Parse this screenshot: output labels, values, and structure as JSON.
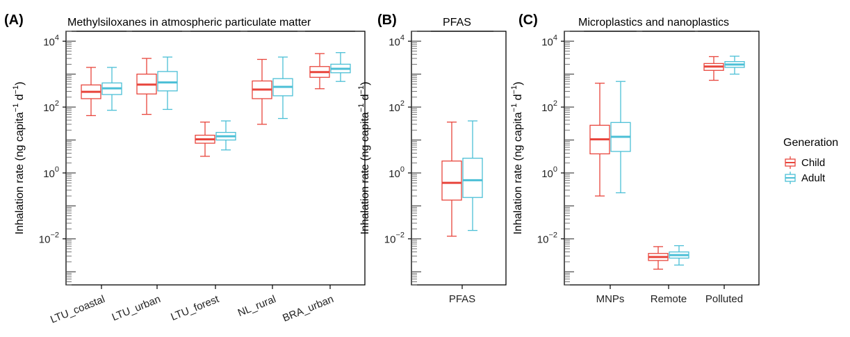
{
  "colors": {
    "Child": "#e8453c",
    "Adult": "#4bbfd6"
  },
  "legend": {
    "title": "Generation",
    "entries": [
      "Child",
      "Adult"
    ],
    "placement": "right"
  },
  "chart_data": [
    {
      "type": "box",
      "panel": "(A)",
      "title": "Methylsiloxanes in atmospheric particulate matter",
      "ylabel": "Inhalation rate (ng capita",
      "ylabel_sup": "−1",
      "ylabel_mid": " d",
      "ylabel_sup2": "−1",
      "ylabel_end": ")",
      "yscale": "log10",
      "ylim": [
        0.0004,
        20000
      ],
      "yticks": [
        {
          "v": 0.01,
          "e": "−2"
        },
        {
          "v": 1,
          "e": "0"
        },
        {
          "v": 100,
          "e": "2"
        },
        {
          "v": 10000,
          "e": "4"
        }
      ],
      "categories": [
        "LTU_coastal",
        "LTU_urban",
        "LTU_forest",
        "NL_rural",
        "BRA_urban"
      ],
      "series": [
        {
          "name": "Child",
          "boxes": [
            {
              "min": 55,
              "q1": 180,
              "median": 290,
              "q3": 470,
              "max": 1600
            },
            {
              "min": 60,
              "q1": 250,
              "median": 480,
              "q3": 1000,
              "max": 3000
            },
            {
              "min": 3.2,
              "q1": 8,
              "median": 10.5,
              "q3": 14,
              "max": 35
            },
            {
              "min": 30,
              "q1": 180,
              "median": 340,
              "q3": 620,
              "max": 2800
            },
            {
              "min": 360,
              "q1": 800,
              "median": 1150,
              "q3": 1700,
              "max": 4200
            }
          ]
        },
        {
          "name": "Adult",
          "boxes": [
            {
              "min": 80,
              "q1": 240,
              "median": 370,
              "q3": 540,
              "max": 1600
            },
            {
              "min": 85,
              "q1": 310,
              "median": 560,
              "q3": 1200,
              "max": 3300
            },
            {
              "min": 5,
              "q1": 10,
              "median": 13,
              "q3": 17,
              "max": 38
            },
            {
              "min": 45,
              "q1": 220,
              "median": 410,
              "q3": 730,
              "max": 3300
            },
            {
              "min": 600,
              "q1": 1100,
              "median": 1450,
              "q3": 2000,
              "max": 4500
            }
          ]
        }
      ]
    },
    {
      "type": "box",
      "panel": "(B)",
      "title": "PFAS",
      "ylabel": "Inhalation rate (ng capita",
      "ylabel_sup": "−1",
      "ylabel_mid": " d",
      "ylabel_sup2": "−1",
      "ylabel_end": ")",
      "yscale": "log10",
      "ylim": [
        0.0004,
        20000
      ],
      "yticks": [
        {
          "v": 0.01,
          "e": "−2"
        },
        {
          "v": 1,
          "e": "0"
        },
        {
          "v": 100,
          "e": "2"
        },
        {
          "v": 10000,
          "e": "4"
        }
      ],
      "categories": [
        "PFAS"
      ],
      "series": [
        {
          "name": "Child",
          "boxes": [
            {
              "min": 0.012,
              "q1": 0.15,
              "median": 0.5,
              "q3": 2.3,
              "max": 35
            }
          ]
        },
        {
          "name": "Adult",
          "boxes": [
            {
              "min": 0.018,
              "q1": 0.18,
              "median": 0.6,
              "q3": 2.8,
              "max": 38
            }
          ]
        }
      ]
    },
    {
      "type": "box",
      "panel": "(C)",
      "title": "Microplastics and nanoplastics",
      "ylabel": "Inhalation rate (ng capita",
      "ylabel_sup": "−1",
      "ylabel_mid": " d",
      "ylabel_sup2": "−1",
      "ylabel_end": ")",
      "yscale": "log10",
      "ylim": [
        0.0004,
        20000
      ],
      "yticks": [
        {
          "v": 0.01,
          "e": "−2"
        },
        {
          "v": 1,
          "e": "0"
        },
        {
          "v": 100,
          "e": "2"
        },
        {
          "v": 10000,
          "e": "4"
        }
      ],
      "categories": [
        "MNPs",
        "Remote",
        "Polluted"
      ],
      "series": [
        {
          "name": "Child",
          "boxes": [
            {
              "min": 0.2,
              "q1": 3.8,
              "median": 10.5,
              "q3": 28,
              "max": 530
            },
            {
              "min": 0.0012,
              "q1": 0.0022,
              "median": 0.0028,
              "q3": 0.0036,
              "max": 0.0058
            },
            {
              "min": 650,
              "q1": 1300,
              "median": 1700,
              "q3": 2100,
              "max": 3400
            }
          ]
        },
        {
          "name": "Adult",
          "boxes": [
            {
              "min": 0.25,
              "q1": 4.5,
              "median": 12.5,
              "q3": 34,
              "max": 600
            },
            {
              "min": 0.0016,
              "q1": 0.0026,
              "median": 0.0032,
              "q3": 0.004,
              "max": 0.0062
            },
            {
              "min": 1000,
              "q1": 1600,
              "median": 1950,
              "q3": 2400,
              "max": 3500
            }
          ]
        }
      ]
    }
  ]
}
